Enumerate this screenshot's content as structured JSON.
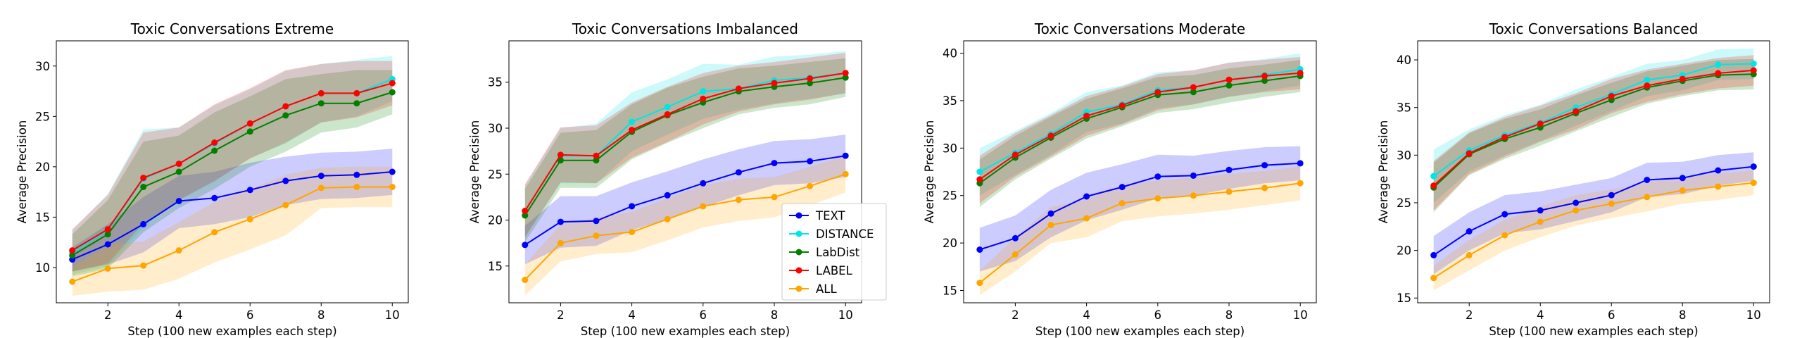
{
  "chart_data": [
    {
      "type": "line",
      "title": "Toxic Conversations Extreme",
      "xlabel": "Step (100 new examples each step)",
      "ylabel": "Average Precision",
      "xlim": [
        0.55,
        10.45
      ],
      "ylim": [
        6.5,
        32.5
      ],
      "xticks": [
        2,
        4,
        6,
        8,
        10
      ],
      "yticks": [
        10,
        15,
        20,
        25,
        30
      ],
      "grid": false,
      "legend": false,
      "x": [
        1,
        2,
        3,
        4,
        5,
        6,
        7,
        8,
        9,
        10
      ],
      "series": [
        {
          "name": "TEXT",
          "color": "#0000ff",
          "values": [
            10.8,
            12.3,
            14.3,
            16.6,
            16.9,
            17.7,
            18.6,
            19.1,
            19.2,
            19.5
          ],
          "lower": [
            9.6,
            10.3,
            11.5,
            13.9,
            14.3,
            15.0,
            16.2,
            16.8,
            16.9,
            17.2
          ],
          "upper": [
            12.0,
            14.3,
            17.0,
            19.1,
            19.5,
            20.4,
            21.0,
            21.4,
            21.5,
            21.8
          ]
        },
        {
          "name": "DISTANCE",
          "color": "#00e5e5",
          "values": [
            11.5,
            13.7,
            18.8,
            20.3,
            22.3,
            24.3,
            26.0,
            27.3,
            27.3,
            28.7
          ],
          "lower": [
            9.3,
            10.1,
            14.0,
            16.7,
            18.5,
            20.9,
            22.3,
            24.4,
            25.0,
            26.5
          ],
          "upper": [
            13.7,
            17.3,
            23.7,
            23.9,
            26.1,
            27.7,
            29.5,
            30.2,
            30.6,
            31.0
          ]
        },
        {
          "name": "LabDist",
          "color": "#008000",
          "values": [
            11.2,
            13.3,
            18.0,
            19.5,
            21.6,
            23.5,
            25.1,
            26.3,
            26.3,
            27.4
          ],
          "lower": [
            9.1,
            9.9,
            13.5,
            15.9,
            17.8,
            20.0,
            21.5,
            23.4,
            23.9,
            25.2
          ],
          "upper": [
            13.3,
            16.7,
            22.5,
            23.1,
            25.4,
            27.0,
            28.7,
            29.2,
            29.6,
            29.6
          ]
        },
        {
          "name": "LABEL",
          "color": "#ff0000",
          "values": [
            11.7,
            13.8,
            18.9,
            20.3,
            22.4,
            24.3,
            26.0,
            27.3,
            27.3,
            28.3
          ],
          "lower": [
            9.6,
            10.4,
            14.4,
            16.7,
            18.6,
            20.8,
            22.4,
            24.4,
            24.9,
            26.1
          ],
          "upper": [
            13.8,
            17.2,
            23.4,
            23.9,
            26.2,
            27.8,
            29.6,
            30.2,
            30.5,
            30.5
          ]
        },
        {
          "name": "ALL",
          "color": "#ffa500",
          "values": [
            8.6,
            9.9,
            10.2,
            11.7,
            13.5,
            14.8,
            16.2,
            17.9,
            18.0,
            18.0
          ],
          "lower": [
            7.2,
            7.6,
            7.8,
            8.9,
            10.5,
            11.8,
            13.2,
            15.9,
            16.0,
            16.0
          ],
          "upper": [
            10.0,
            12.2,
            12.6,
            14.5,
            16.5,
            17.8,
            19.2,
            19.9,
            20.0,
            20.0
          ]
        }
      ]
    },
    {
      "type": "line",
      "title": "Toxic Conversations Imbalanced",
      "xlabel": "Step (100 new examples each step)",
      "ylabel": "Average Precision",
      "xlim": [
        0.55,
        10.45
      ],
      "ylim": [
        11.0,
        39.5
      ],
      "xticks": [
        2,
        4,
        6,
        8,
        10
      ],
      "yticks": [
        15,
        20,
        25,
        30,
        35
      ],
      "grid": false,
      "legend": true,
      "legend_position": "lower-right",
      "x": [
        1,
        2,
        3,
        4,
        5,
        6,
        7,
        8,
        9,
        10
      ],
      "series": [
        {
          "name": "TEXT",
          "color": "#0000ff",
          "values": [
            17.3,
            19.8,
            19.9,
            21.5,
            22.7,
            24.0,
            25.2,
            26.2,
            26.4,
            27.0
          ],
          "lower": [
            15.2,
            17.0,
            17.2,
            18.9,
            20.1,
            21.4,
            22.7,
            23.8,
            24.0,
            24.7
          ],
          "upper": [
            19.4,
            22.6,
            22.6,
            24.1,
            25.3,
            26.6,
            27.7,
            28.6,
            28.8,
            29.3
          ]
        },
        {
          "name": "DISTANCE",
          "color": "#00e5e5",
          "values": [
            21.0,
            27.0,
            27.0,
            30.7,
            32.3,
            34.0,
            34.3,
            35.2,
            35.5,
            36.0
          ],
          "lower": [
            18.2,
            24.0,
            24.0,
            27.5,
            29.3,
            31.0,
            32.0,
            32.7,
            33.2,
            33.8
          ],
          "upper": [
            23.8,
            30.0,
            30.5,
            33.9,
            35.3,
            37.0,
            36.9,
            37.8,
            38.0,
            38.4
          ]
        },
        {
          "name": "LabDist",
          "color": "#008000",
          "values": [
            20.5,
            26.5,
            26.5,
            29.6,
            31.4,
            32.8,
            34.0,
            34.5,
            34.9,
            35.5
          ],
          "lower": [
            17.6,
            23.5,
            23.5,
            26.6,
            28.4,
            30.0,
            31.5,
            32.2,
            32.6,
            33.4
          ],
          "upper": [
            23.4,
            29.5,
            29.8,
            32.6,
            34.4,
            35.6,
            36.5,
            36.8,
            37.2,
            37.6
          ]
        },
        {
          "name": "LABEL",
          "color": "#ff0000",
          "values": [
            21.0,
            27.1,
            27.0,
            29.8,
            31.5,
            33.2,
            34.3,
            34.9,
            35.4,
            36.0
          ],
          "lower": [
            18.1,
            24.1,
            24.0,
            26.8,
            28.5,
            30.4,
            31.8,
            32.6,
            33.1,
            33.8
          ],
          "upper": [
            23.9,
            30.1,
            30.3,
            32.8,
            34.5,
            36.0,
            36.8,
            37.2,
            37.7,
            38.2
          ]
        },
        {
          "name": "ALL",
          "color": "#ffa500",
          "values": [
            13.5,
            17.5,
            18.3,
            18.7,
            20.1,
            21.5,
            22.2,
            22.5,
            23.7,
            25.0
          ],
          "lower": [
            11.8,
            15.5,
            16.3,
            16.5,
            17.8,
            19.2,
            19.9,
            20.3,
            21.6,
            23.0
          ],
          "upper": [
            15.2,
            19.5,
            20.3,
            20.9,
            22.4,
            23.8,
            24.5,
            24.7,
            25.8,
            27.0
          ]
        }
      ]
    },
    {
      "type": "line",
      "title": "Toxic Conversations Moderate",
      "xlabel": "Step (100 new examples each step)",
      "ylabel": "Average Precision",
      "xlim": [
        0.55,
        10.45
      ],
      "ylim": [
        13.7,
        41.3
      ],
      "xticks": [
        2,
        4,
        6,
        8,
        10
      ],
      "yticks": [
        15,
        20,
        25,
        30,
        35,
        40
      ],
      "grid": false,
      "legend": false,
      "x": [
        1,
        2,
        3,
        4,
        5,
        6,
        7,
        8,
        9,
        10
      ],
      "series": [
        {
          "name": "TEXT",
          "color": "#0000ff",
          "values": [
            19.3,
            20.5,
            23.1,
            24.9,
            25.9,
            27.0,
            27.1,
            27.7,
            28.2,
            28.4
          ],
          "lower": [
            17.0,
            18.1,
            20.6,
            22.4,
            23.5,
            24.7,
            25.0,
            25.7,
            26.3,
            26.6
          ],
          "upper": [
            21.6,
            22.9,
            25.6,
            27.4,
            28.3,
            29.3,
            29.2,
            29.7,
            30.1,
            30.2
          ]
        },
        {
          "name": "DISTANCE",
          "color": "#00e5e5",
          "values": [
            27.5,
            29.5,
            31.5,
            33.8,
            34.6,
            36.1,
            36.4,
            37.2,
            37.7,
            38.3
          ],
          "lower": [
            25.0,
            27.2,
            29.3,
            31.7,
            32.6,
            34.2,
            34.6,
            35.4,
            36.0,
            36.6
          ],
          "upper": [
            30.0,
            31.8,
            33.7,
            35.9,
            36.6,
            38.0,
            38.2,
            39.0,
            39.4,
            40.0
          ]
        },
        {
          "name": "LabDist",
          "color": "#008000",
          "values": [
            26.3,
            29.0,
            31.1,
            33.1,
            34.3,
            35.6,
            35.9,
            36.6,
            37.1,
            37.6
          ],
          "lower": [
            23.8,
            26.7,
            28.9,
            31.0,
            32.3,
            33.7,
            34.1,
            34.8,
            35.4,
            35.9
          ],
          "upper": [
            28.8,
            31.3,
            33.3,
            35.2,
            36.3,
            37.5,
            37.7,
            38.4,
            38.8,
            39.3
          ]
        },
        {
          "name": "LABEL",
          "color": "#ff0000",
          "values": [
            26.7,
            29.3,
            31.3,
            33.4,
            34.5,
            35.9,
            36.4,
            37.2,
            37.6,
            37.9
          ],
          "lower": [
            24.2,
            27.0,
            29.1,
            31.3,
            32.5,
            34.0,
            34.6,
            35.4,
            35.9,
            36.2
          ],
          "upper": [
            29.2,
            31.6,
            33.5,
            35.5,
            36.5,
            37.8,
            38.2,
            39.0,
            39.3,
            39.6
          ]
        },
        {
          "name": "ALL",
          "color": "#ffa500",
          "values": [
            15.8,
            18.8,
            21.9,
            22.6,
            24.2,
            24.7,
            25.0,
            25.4,
            25.8,
            26.3
          ],
          "lower": [
            14.5,
            17.0,
            20.0,
            20.6,
            22.3,
            22.8,
            23.1,
            23.5,
            24.0,
            24.5
          ],
          "upper": [
            17.1,
            20.6,
            23.8,
            24.6,
            26.1,
            26.6,
            26.9,
            27.3,
            27.6,
            28.1
          ]
        }
      ]
    },
    {
      "type": "line",
      "title": "Toxic Conversations Balanced",
      "xlabel": "Step (100 new examples each step)",
      "ylabel": "Average Precision",
      "xlim": [
        0.55,
        10.45
      ],
      "ylim": [
        14.5,
        42.0
      ],
      "xticks": [
        2,
        4,
        6,
        8,
        10
      ],
      "yticks": [
        15,
        20,
        25,
        30,
        35,
        40
      ],
      "grid": false,
      "legend": false,
      "x": [
        1,
        2,
        3,
        4,
        5,
        6,
        7,
        8,
        9,
        10
      ],
      "series": [
        {
          "name": "TEXT",
          "color": "#0000ff",
          "values": [
            19.5,
            22.0,
            23.8,
            24.2,
            25.0,
            25.8,
            27.4,
            27.6,
            28.4,
            28.8
          ],
          "lower": [
            17.5,
            20.0,
            21.8,
            22.2,
            23.1,
            24.0,
            25.6,
            25.9,
            26.8,
            27.3
          ],
          "upper": [
            21.5,
            24.0,
            25.8,
            26.2,
            26.9,
            27.6,
            29.2,
            29.3,
            30.0,
            30.3
          ]
        },
        {
          "name": "DISTANCE",
          "color": "#00e5e5",
          "values": [
            27.8,
            30.5,
            32.1,
            33.4,
            35.0,
            36.4,
            37.9,
            38.4,
            39.5,
            39.6
          ],
          "lower": [
            25.0,
            28.3,
            30.0,
            31.5,
            33.1,
            34.6,
            36.2,
            36.8,
            37.9,
            38.0
          ],
          "upper": [
            30.6,
            32.7,
            34.2,
            35.3,
            36.9,
            38.2,
            39.6,
            40.0,
            41.1,
            41.2
          ]
        },
        {
          "name": "LabDist",
          "color": "#008000",
          "values": [
            26.6,
            30.1,
            31.7,
            32.9,
            34.4,
            35.8,
            37.1,
            37.8,
            38.4,
            38.5
          ],
          "lower": [
            24.0,
            27.9,
            29.6,
            31.0,
            32.5,
            34.0,
            35.4,
            36.2,
            36.8,
            36.9
          ],
          "upper": [
            29.2,
            32.3,
            33.8,
            34.8,
            36.3,
            37.6,
            38.8,
            39.4,
            40.0,
            40.1
          ]
        },
        {
          "name": "LABEL",
          "color": "#ff0000",
          "values": [
            26.8,
            30.2,
            31.9,
            33.3,
            34.6,
            36.2,
            37.3,
            38.0,
            38.6,
            38.9
          ],
          "lower": [
            24.2,
            28.0,
            29.8,
            31.4,
            32.7,
            34.4,
            35.6,
            36.4,
            37.0,
            37.3
          ],
          "upper": [
            29.4,
            32.4,
            34.0,
            35.2,
            36.5,
            38.0,
            39.0,
            39.6,
            40.2,
            40.5
          ]
        },
        {
          "name": "ALL",
          "color": "#ffa500",
          "values": [
            17.1,
            19.5,
            21.6,
            23.0,
            24.2,
            24.9,
            25.6,
            26.3,
            26.7,
            27.1
          ],
          "lower": [
            15.8,
            17.9,
            20.0,
            21.4,
            22.6,
            23.4,
            24.1,
            24.9,
            25.3,
            25.8
          ],
          "upper": [
            18.4,
            21.1,
            23.2,
            24.6,
            25.8,
            26.4,
            27.1,
            27.7,
            28.1,
            28.4
          ]
        }
      ]
    }
  ]
}
